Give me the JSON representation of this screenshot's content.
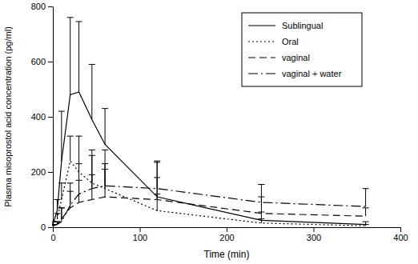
{
  "chart_data": {
    "type": "line",
    "x_label": "Time (min)",
    "y_label": "Plasma misoprostol acid concentration (pg/ml)",
    "x": [
      0,
      5,
      10,
      20,
      30,
      45,
      60,
      120,
      240,
      360
    ],
    "series": [
      {
        "name": "Sublingual",
        "color": "#000000",
        "line_style": "solid",
        "values": [
          10,
          60,
          240,
          480,
          490,
          390,
          300,
          110,
          25,
          10
        ],
        "error": [
          10,
          40,
          180,
          280,
          255,
          200,
          130,
          125,
          30,
          10
        ]
      },
      {
        "name": "Oral",
        "color": "#000000",
        "line_style": "dotted",
        "values": [
          5,
          30,
          100,
          240,
          200,
          160,
          140,
          60,
          15,
          5
        ],
        "error": [
          5,
          20,
          60,
          90,
          130,
          100,
          90,
          60,
          15,
          5
        ]
      },
      {
        "name": "vaginal",
        "color": "#000000",
        "line_style": "dashed",
        "values": [
          5,
          10,
          30,
          70,
          90,
          100,
          110,
          100,
          50,
          40
        ],
        "error": [
          5,
          10,
          40,
          60,
          80,
          90,
          100,
          80,
          60,
          30
        ]
      },
      {
        "name": "vaginal + water",
        "color": "#000000",
        "line_style": "dashdot",
        "values": [
          5,
          10,
          20,
          80,
          120,
          140,
          150,
          140,
          90,
          75
        ],
        "error": [
          5,
          10,
          50,
          80,
          110,
          140,
          130,
          100,
          65,
          65
        ]
      }
    ],
    "xlim": [
      0,
      400
    ],
    "xticks": [
      0,
      100,
      200,
      300,
      400
    ],
    "ylim": [
      0,
      800
    ],
    "yticks": [
      0,
      200,
      400,
      600,
      800
    ],
    "legend": "upper right",
    "grid": false
  }
}
